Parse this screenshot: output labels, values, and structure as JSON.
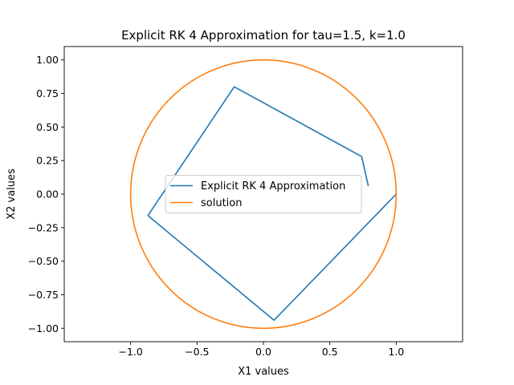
{
  "chart_data": {
    "type": "line",
    "title": "Explicit RK 4 Approximation for tau=1.5, k=1.0",
    "xlabel": "X1 values",
    "ylabel": "X2 values",
    "xlim": [
      -1.5,
      1.5
    ],
    "ylim": [
      -1.1,
      1.1
    ],
    "grid": false,
    "legend_position": "center",
    "x_ticks": [
      -1.0,
      -0.5,
      0.0,
      0.5,
      1.0
    ],
    "x_tick_labels": [
      "−1.0",
      "−0.5",
      "0.0",
      "0.5",
      "1.0"
    ],
    "y_ticks": [
      1.0,
      0.75,
      0.5,
      0.25,
      0.0,
      -0.25,
      -0.5,
      -0.75,
      -1.0
    ],
    "y_tick_labels": [
      "1.00",
      "0.75",
      "0.50",
      "0.25",
      "0.00",
      "−0.25",
      "−0.50",
      "−0.75",
      "−1.00"
    ],
    "series": [
      {
        "name": "Explicit RK 4 Approximation",
        "color": "#1f77b4",
        "x": [
          1.0,
          0.08,
          -0.87,
          -0.22,
          0.74,
          0.79
        ],
        "y": [
          0.0,
          -0.94,
          -0.16,
          0.8,
          0.28,
          0.06
        ]
      },
      {
        "name": "solution",
        "color": "#ff7f0e",
        "shape": "unit-circle",
        "center": [
          0,
          0
        ],
        "radius": 1.0
      }
    ]
  }
}
